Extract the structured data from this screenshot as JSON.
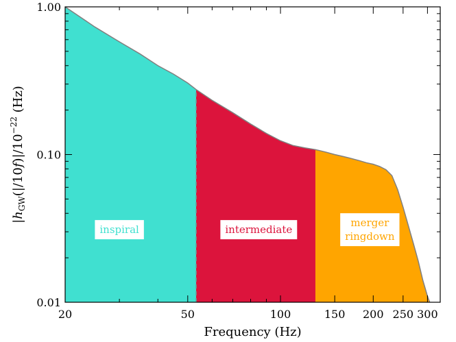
{
  "chart_data": {
    "type": "area",
    "title": "",
    "xlabel": "Frequency (Hz)",
    "ylabel": "|h_GW(f)|/10^-22 (Hz)",
    "ylabel_parts": {
      "bar_open": "|",
      "h": "h",
      "sub": "GW",
      "mid": "(f)|/10",
      "sup": "−22",
      "unit": " (Hz)"
    },
    "xscale": "log",
    "yscale": "log",
    "xlim": [
      20,
      330
    ],
    "ylim": [
      0.01,
      1.0
    ],
    "x_ticks": [
      {
        "value": 20,
        "label": "20"
      },
      {
        "value": 50,
        "label": "50"
      },
      {
        "value": 100,
        "label": "100"
      },
      {
        "value": 150,
        "label": "150"
      },
      {
        "value": 200,
        "label": "200"
      },
      {
        "value": 250,
        "label": "250"
      },
      {
        "value": 300,
        "label": "300"
      }
    ],
    "y_ticks": [
      {
        "value": 0.01,
        "label": "0.01"
      },
      {
        "value": 0.1,
        "label": "0.10"
      },
      {
        "value": 1.0,
        "label": "1.00"
      }
    ],
    "curve": {
      "x": [
        20,
        25,
        30,
        35,
        40,
        45,
        50,
        53.3,
        60,
        70,
        80,
        90,
        100,
        110,
        120,
        130,
        140,
        150,
        160,
        170,
        180,
        190,
        200,
        210,
        220,
        230,
        240,
        250,
        260,
        270,
        280,
        290,
        300,
        305
      ],
      "y": [
        1.0,
        0.73,
        0.58,
        0.48,
        0.4,
        0.35,
        0.305,
        0.275,
        0.233,
        0.192,
        0.161,
        0.139,
        0.124,
        0.115,
        0.111,
        0.108,
        0.104,
        0.1,
        0.097,
        0.094,
        0.091,
        0.088,
        0.086,
        0.083,
        0.079,
        0.072,
        0.058,
        0.044,
        0.033,
        0.025,
        0.019,
        0.014,
        0.011,
        0.01
      ]
    },
    "regions": [
      {
        "name": "inspiral",
        "label": [
          "inspiral"
        ],
        "x_start": 20,
        "x_end": 53.3,
        "color": "#40E0D0",
        "label_x": 30,
        "label_y": 0.031
      },
      {
        "name": "intermediate",
        "label": [
          "intermediate"
        ],
        "x_start": 53.3,
        "x_end": 130,
        "color": "#DC143C",
        "label_x": 85,
        "label_y": 0.031
      },
      {
        "name": "merger ringdown",
        "label": [
          "merger",
          "ringdown"
        ],
        "x_start": 130,
        "x_end": 305,
        "color": "#FFA500",
        "label_x": 195,
        "label_y": 0.031
      }
    ],
    "curve_color": "#808080",
    "grid": false,
    "legend": "none"
  }
}
